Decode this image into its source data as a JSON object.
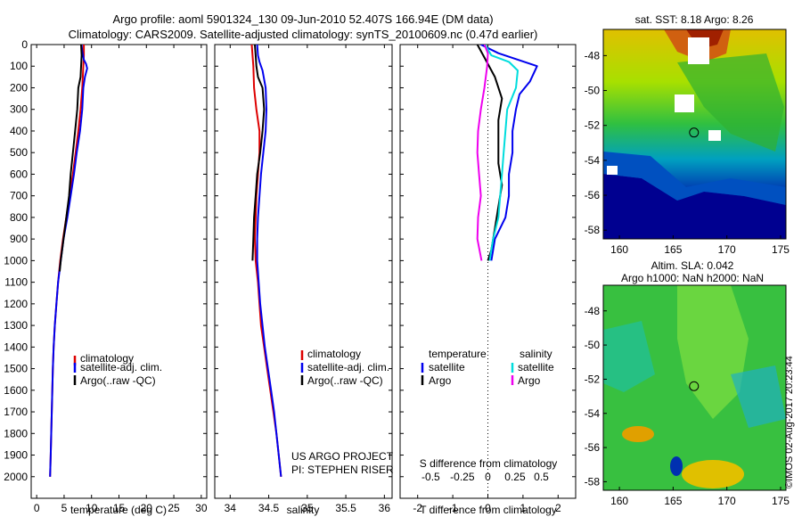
{
  "figure": {
    "title_line1": "Argo profile: aoml 5901324_130 09-Jun-2010 52.407S 166.94E (DM data)",
    "title_line2": "Climatology: CARS2009. Satellite-adjusted climatology: synTS_20100609.nc (0.47d earlier)",
    "credit": "©IMOS 02-Aug-2017 20:23:44",
    "project_line1": "US ARGO PROJECT",
    "project_line2": "PI: STEPHEN RISER"
  },
  "colors": {
    "climatology": "#dd0000",
    "satellite": "#0000ee",
    "argo": "#000000",
    "sal_satellite": "#00dddd",
    "sal_argo": "#ee00ee"
  },
  "chart_data": [
    {
      "type": "line",
      "panel": "temperature",
      "xlabel": "temperature (deg C)",
      "ylabel": "",
      "xlim": [
        -1,
        31
      ],
      "ylim": [
        2100,
        0
      ],
      "xticks": [
        0,
        5,
        10,
        15,
        20,
        25,
        30
      ],
      "yticks": [
        0,
        100,
        200,
        300,
        400,
        500,
        600,
        700,
        800,
        900,
        1000,
        1100,
        1200,
        1300,
        1400,
        1500,
        1600,
        1700,
        1800,
        1900,
        2000
      ],
      "legend": [
        "climatology",
        "satellite-adj. clim.",
        "Argo(..raw -QC)"
      ],
      "legend_position": "lower-center",
      "series": [
        {
          "name": "climatology",
          "color": "#dd0000",
          "points": [
            [
              8.6,
              0
            ],
            [
              8.6,
              50
            ],
            [
              8.5,
              100
            ],
            [
              8.3,
              200
            ],
            [
              8.0,
              300
            ],
            [
              7.6,
              400
            ],
            [
              7.1,
              500
            ],
            [
              6.6,
              600
            ],
            [
              6.0,
              700
            ],
            [
              5.4,
              800
            ],
            [
              4.8,
              900
            ],
            [
              4.3,
              1000
            ],
            [
              3.9,
              1100
            ],
            [
              3.6,
              1200
            ],
            [
              3.3,
              1300
            ],
            [
              3.1,
              1400
            ],
            [
              2.95,
              1500
            ],
            [
              2.85,
              1600
            ],
            [
              2.75,
              1700
            ],
            [
              2.65,
              1800
            ],
            [
              2.55,
              1900
            ],
            [
              2.45,
              2000
            ]
          ]
        },
        {
          "name": "satellite-adj. clim.",
          "color": "#0000ee",
          "points": [
            [
              8.2,
              0
            ],
            [
              8.3,
              30
            ],
            [
              8.6,
              70
            ],
            [
              9.0,
              90
            ],
            [
              9.2,
              110
            ],
            [
              8.8,
              150
            ],
            [
              8.5,
              200
            ],
            [
              8.3,
              300
            ],
            [
              7.9,
              400
            ],
            [
              7.3,
              500
            ],
            [
              6.8,
              600
            ],
            [
              6.2,
              700
            ],
            [
              5.6,
              800
            ],
            [
              4.9,
              900
            ],
            [
              4.4,
              1000
            ],
            [
              3.9,
              1100
            ],
            [
              3.6,
              1200
            ],
            [
              3.3,
              1300
            ],
            [
              3.1,
              1400
            ],
            [
              2.95,
              1500
            ],
            [
              2.85,
              1600
            ],
            [
              2.75,
              1700
            ],
            [
              2.65,
              1800
            ],
            [
              2.55,
              1900
            ],
            [
              2.45,
              2000
            ]
          ]
        },
        {
          "name": "Argo(..raw -QC)",
          "color": "#000000",
          "points": [
            [
              8.1,
              0
            ],
            [
              8.2,
              50
            ],
            [
              8.1,
              100
            ],
            [
              8.0,
              150
            ],
            [
              7.6,
              200
            ],
            [
              7.4,
              300
            ],
            [
              7.0,
              400
            ],
            [
              6.6,
              500
            ],
            [
              6.2,
              600
            ],
            [
              5.9,
              700
            ],
            [
              5.4,
              800
            ],
            [
              4.9,
              900
            ],
            [
              4.4,
              1000
            ],
            [
              4.2,
              1050
            ]
          ]
        }
      ]
    },
    {
      "type": "line",
      "panel": "salinity",
      "xlabel": "salinity",
      "ylabel": "",
      "xlim": [
        33.8,
        36.1
      ],
      "ylim": [
        2100,
        0
      ],
      "xticks": [
        34,
        34.5,
        35,
        35.5,
        36
      ],
      "legend": [
        "climatology",
        "satellite-adj. clim.",
        "Argo(..raw -QC)"
      ],
      "legend_position": "lower-center",
      "series": [
        {
          "name": "climatology",
          "color": "#dd0000",
          "points": [
            [
              34.28,
              0
            ],
            [
              34.29,
              50
            ],
            [
              34.3,
              100
            ],
            [
              34.31,
              200
            ],
            [
              34.34,
              300
            ],
            [
              34.38,
              400
            ],
            [
              34.38,
              500
            ],
            [
              34.36,
              600
            ],
            [
              34.34,
              700
            ],
            [
              34.33,
              800
            ],
            [
              34.32,
              900
            ],
            [
              34.33,
              1000
            ],
            [
              34.36,
              1100
            ],
            [
              34.38,
              1200
            ],
            [
              34.4,
              1300
            ],
            [
              34.44,
              1400
            ],
            [
              34.48,
              1500
            ],
            [
              34.52,
              1600
            ],
            [
              34.56,
              1700
            ],
            [
              34.6,
              1800
            ],
            [
              34.63,
              1900
            ],
            [
              34.66,
              2000
            ]
          ]
        },
        {
          "name": "satellite-adj. clim.",
          "color": "#0000ee",
          "points": [
            [
              34.35,
              0
            ],
            [
              34.36,
              50
            ],
            [
              34.38,
              80
            ],
            [
              34.42,
              120
            ],
            [
              34.46,
              200
            ],
            [
              34.47,
              300
            ],
            [
              34.46,
              400
            ],
            [
              34.43,
              500
            ],
            [
              34.4,
              600
            ],
            [
              34.38,
              700
            ],
            [
              34.36,
              800
            ],
            [
              34.35,
              900
            ],
            [
              34.35,
              1000
            ],
            [
              34.37,
              1100
            ],
            [
              34.39,
              1200
            ],
            [
              34.42,
              1300
            ],
            [
              34.45,
              1400
            ],
            [
              34.49,
              1500
            ],
            [
              34.53,
              1600
            ],
            [
              34.57,
              1700
            ],
            [
              34.6,
              1800
            ],
            [
              34.63,
              1900
            ],
            [
              34.66,
              2000
            ]
          ]
        },
        {
          "name": "Argo(..raw -QC)",
          "color": "#000000",
          "points": [
            [
              34.32,
              0
            ],
            [
              34.33,
              50
            ],
            [
              34.34,
              100
            ],
            [
              34.36,
              150
            ],
            [
              34.42,
              200
            ],
            [
              34.44,
              300
            ],
            [
              34.42,
              400
            ],
            [
              34.39,
              500
            ],
            [
              34.35,
              600
            ],
            [
              34.33,
              700
            ],
            [
              34.31,
              800
            ],
            [
              34.3,
              900
            ],
            [
              34.29,
              1000
            ]
          ]
        }
      ]
    },
    {
      "type": "line",
      "panel": "difference",
      "xlabel": "T difference from climatology",
      "xlabel_top": "S difference from climatology",
      "xlim": [
        -2.5,
        2.5
      ],
      "ylim": [
        2100,
        0
      ],
      "xticks": [
        -2,
        -1,
        0,
        1,
        2
      ],
      "xtick_labels_top": [
        "-0.5",
        "-0.25",
        "0",
        "0.25",
        "0.5"
      ],
      "legend_temperature": {
        "title": "temperature",
        "entries": [
          "satellite",
          "Argo"
        ]
      },
      "legend_salinity": {
        "title": "salinity",
        "entries": [
          "satellite",
          "Argo"
        ]
      },
      "legend_position": "lower-center",
      "series": [
        {
          "name": "satellite",
          "group": "temperature",
          "color": "#0000ee",
          "points": [
            [
              -0.2,
              0
            ],
            [
              0.3,
              40
            ],
            [
              1.4,
              100
            ],
            [
              1.2,
              170
            ],
            [
              0.9,
              230
            ],
            [
              0.8,
              300
            ],
            [
              0.7,
              400
            ],
            [
              0.7,
              500
            ],
            [
              0.6,
              600
            ],
            [
              0.6,
              700
            ],
            [
              0.5,
              800
            ],
            [
              0.2,
              900
            ],
            [
              0.1,
              1000
            ]
          ]
        },
        {
          "name": "Argo",
          "group": "temperature",
          "color": "#000000",
          "points": [
            [
              -0.3,
              0
            ],
            [
              -0.1,
              60
            ],
            [
              0.2,
              150
            ],
            [
              0.4,
              250
            ],
            [
              0.3,
              350
            ],
            [
              0.3,
              450
            ],
            [
              0.3,
              550
            ],
            [
              0.4,
              650
            ],
            [
              0.3,
              750
            ],
            [
              0.2,
              850
            ],
            [
              0.1,
              950
            ],
            [
              0.0,
              1000
            ]
          ]
        },
        {
          "name": "satellite",
          "group": "salinity",
          "color": "#00dddd",
          "points": [
            [
              -0.08,
              0
            ],
            [
              0.1,
              50
            ],
            [
              0.6,
              80
            ],
            [
              0.85,
              120
            ],
            [
              0.8,
              200
            ],
            [
              0.55,
              300
            ],
            [
              0.5,
              400
            ],
            [
              0.45,
              500
            ],
            [
              0.4,
              600
            ],
            [
              0.35,
              700
            ],
            [
              0.3,
              800
            ],
            [
              0.15,
              900
            ],
            [
              0.05,
              1000
            ]
          ]
        },
        {
          "name": "Argo",
          "group": "salinity",
          "color": "#ee00ee",
          "points": [
            [
              -0.1,
              0
            ],
            [
              0.0,
              40
            ],
            [
              -0.02,
              100
            ],
            [
              -0.1,
              200
            ],
            [
              -0.2,
              300
            ],
            [
              -0.28,
              400
            ],
            [
              -0.3,
              500
            ],
            [
              -0.25,
              600
            ],
            [
              -0.2,
              700
            ],
            [
              -0.28,
              800
            ],
            [
              -0.3,
              900
            ],
            [
              -0.18,
              1000
            ]
          ]
        }
      ]
    },
    {
      "type": "heatmap",
      "panel": "sst-map",
      "title": "sat. SST: 8.18 Argo: 8.26",
      "xlim": [
        158.5,
        175.5
      ],
      "ylim": [
        -58.5,
        -46.5
      ],
      "xticks": [
        160,
        165,
        170,
        175
      ],
      "yticks": [
        -48,
        -50,
        -52,
        -54,
        -56,
        -58
      ],
      "marker": {
        "lon": 166.94,
        "lat": -52.407
      }
    },
    {
      "type": "heatmap",
      "panel": "sla-map",
      "title": "Altim. SLA: 0.042",
      "title_line2": "Argo h1000: NaN h2000: NaN",
      "xlim": [
        158.5,
        175.5
      ],
      "ylim": [
        -58.5,
        -46.5
      ],
      "xticks": [
        160,
        165,
        170,
        175
      ],
      "yticks": [
        -48,
        -50,
        -52,
        -54,
        -56,
        -58
      ],
      "marker": {
        "lon": 166.94,
        "lat": -52.407
      }
    }
  ]
}
